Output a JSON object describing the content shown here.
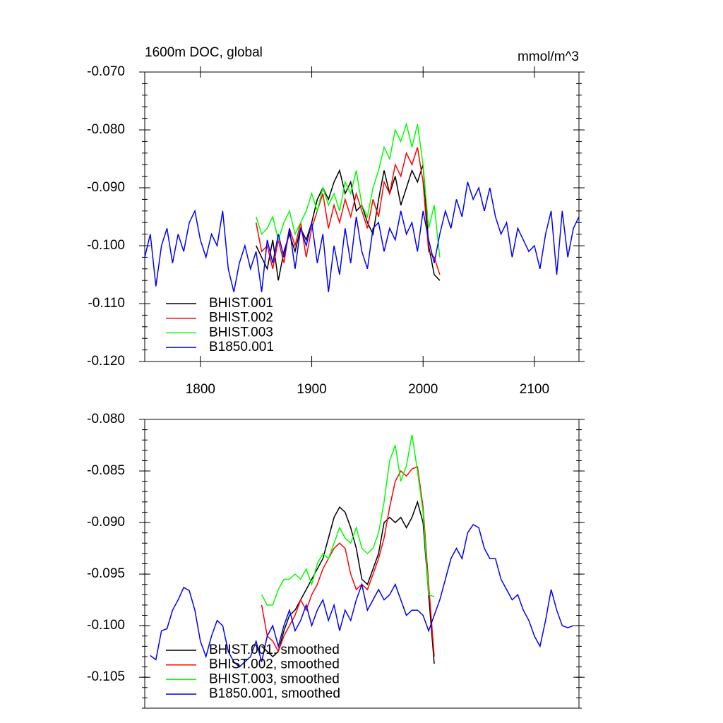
{
  "chart_data": [
    {
      "type": "line",
      "title": "1600m DOC, global",
      "units": "mmol/m^3",
      "xlim": [
        1750,
        2140
      ],
      "xticks": [
        1800,
        1900,
        2000,
        2100
      ],
      "ylim": [
        -0.12,
        -0.07
      ],
      "yticks": [
        {
          "value": -0.12,
          "label": "-0.120"
        },
        {
          "value": -0.11,
          "label": "-0.110"
        },
        {
          "value": -0.1,
          "label": "-0.100"
        },
        {
          "value": -0.09,
          "label": "-0.090"
        },
        {
          "value": -0.08,
          "label": "-0.080"
        },
        {
          "value": -0.07,
          "label": "-0.070"
        }
      ],
      "legend": "lower left",
      "series": [
        {
          "name": "BHIST.001",
          "color": "#000000",
          "x": [
            1850,
            1855,
            1860,
            1865,
            1870,
            1875,
            1880,
            1885,
            1890,
            1895,
            1900,
            1905,
            1910,
            1915,
            1920,
            1925,
            1930,
            1935,
            1940,
            1945,
            1950,
            1955,
            1960,
            1965,
            1970,
            1975,
            1980,
            1985,
            1990,
            1995,
            2000,
            2005,
            2010,
            2015
          ],
          "values": [
            -0.1,
            -0.102,
            -0.104,
            -0.099,
            -0.106,
            -0.101,
            -0.098,
            -0.101,
            -0.097,
            -0.099,
            -0.096,
            -0.092,
            -0.09,
            -0.092,
            -0.089,
            -0.087,
            -0.091,
            -0.089,
            -0.094,
            -0.093,
            -0.096,
            -0.098,
            -0.092,
            -0.087,
            -0.091,
            -0.088,
            -0.093,
            -0.09,
            -0.087,
            -0.089,
            -0.086,
            -0.1,
            -0.105,
            -0.106
          ]
        },
        {
          "name": "BHIST.002",
          "color": "#ff0000",
          "x": [
            1850,
            1855,
            1860,
            1865,
            1870,
            1875,
            1880,
            1885,
            1890,
            1895,
            1900,
            1905,
            1910,
            1915,
            1920,
            1925,
            1930,
            1935,
            1940,
            1945,
            1950,
            1955,
            1960,
            1965,
            1970,
            1975,
            1980,
            1985,
            1990,
            1995,
            2000,
            2005,
            2010,
            2015
          ],
          "values": [
            -0.096,
            -0.101,
            -0.1,
            -0.104,
            -0.099,
            -0.103,
            -0.097,
            -0.1,
            -0.096,
            -0.102,
            -0.097,
            -0.094,
            -0.091,
            -0.097,
            -0.093,
            -0.096,
            -0.092,
            -0.095,
            -0.091,
            -0.094,
            -0.097,
            -0.092,
            -0.095,
            -0.089,
            -0.091,
            -0.086,
            -0.088,
            -0.084,
            -0.086,
            -0.083,
            -0.089,
            -0.101,
            -0.102,
            -0.105
          ]
        },
        {
          "name": "BHIST.003",
          "color": "#00ff00",
          "x": [
            1850,
            1855,
            1860,
            1865,
            1870,
            1875,
            1880,
            1885,
            1890,
            1895,
            1900,
            1905,
            1910,
            1915,
            1920,
            1925,
            1930,
            1935,
            1940,
            1945,
            1950,
            1955,
            1960,
            1965,
            1970,
            1975,
            1980,
            1985,
            1990,
            1995,
            2000,
            2005,
            2010,
            2015
          ],
          "values": [
            -0.095,
            -0.098,
            -0.097,
            -0.095,
            -0.099,
            -0.096,
            -0.094,
            -0.098,
            -0.096,
            -0.094,
            -0.091,
            -0.094,
            -0.09,
            -0.093,
            -0.091,
            -0.094,
            -0.089,
            -0.091,
            -0.087,
            -0.093,
            -0.095,
            -0.09,
            -0.087,
            -0.083,
            -0.085,
            -0.08,
            -0.082,
            -0.079,
            -0.083,
            -0.079,
            -0.086,
            -0.097,
            -0.093,
            -0.102
          ]
        },
        {
          "name": "B1850.001",
          "color": "#0000ff",
          "x": [
            1750,
            1755,
            1760,
            1765,
            1770,
            1775,
            1780,
            1785,
            1790,
            1795,
            1800,
            1805,
            1810,
            1815,
            1820,
            1825,
            1830,
            1835,
            1840,
            1845,
            1850,
            1855,
            1860,
            1865,
            1870,
            1875,
            1880,
            1885,
            1890,
            1895,
            1900,
            1905,
            1910,
            1915,
            1920,
            1925,
            1930,
            1935,
            1940,
            1945,
            1950,
            1955,
            1960,
            1965,
            1970,
            1975,
            1980,
            1985,
            1990,
            1995,
            2000,
            2005,
            2010,
            2015,
            2020,
            2025,
            2030,
            2035,
            2040,
            2045,
            2050,
            2055,
            2060,
            2065,
            2070,
            2075,
            2080,
            2085,
            2090,
            2095,
            2100,
            2105,
            2110,
            2115,
            2120,
            2125,
            2130,
            2135,
            2140
          ],
          "values": [
            -0.102,
            -0.098,
            -0.107,
            -0.1,
            -0.097,
            -0.103,
            -0.098,
            -0.101,
            -0.096,
            -0.094,
            -0.099,
            -0.102,
            -0.098,
            -0.1,
            -0.094,
            -0.104,
            -0.108,
            -0.103,
            -0.1,
            -0.104,
            -0.101,
            -0.108,
            -0.099,
            -0.103,
            -0.098,
            -0.102,
            -0.097,
            -0.104,
            -0.097,
            -0.1,
            -0.096,
            -0.103,
            -0.098,
            -0.108,
            -0.1,
            -0.105,
            -0.097,
            -0.103,
            -0.095,
            -0.101,
            -0.104,
            -0.097,
            -0.096,
            -0.101,
            -0.097,
            -0.099,
            -0.094,
            -0.098,
            -0.096,
            -0.101,
            -0.094,
            -0.099,
            -0.103,
            -0.098,
            -0.094,
            -0.097,
            -0.092,
            -0.095,
            -0.089,
            -0.092,
            -0.09,
            -0.094,
            -0.09,
            -0.095,
            -0.098,
            -0.096,
            -0.102,
            -0.097,
            -0.099,
            -0.101,
            -0.1,
            -0.104,
            -0.098,
            -0.094,
            -0.105,
            -0.094,
            -0.102,
            -0.097,
            -0.095
          ]
        }
      ]
    },
    {
      "type": "line",
      "xlim": [
        1750,
        2140
      ],
      "ylim": [
        -0.108,
        -0.08
      ],
      "yticks": [
        {
          "value": -0.105,
          "label": "-0.105"
        },
        {
          "value": -0.1,
          "label": "-0.100"
        },
        {
          "value": -0.095,
          "label": "-0.095"
        },
        {
          "value": -0.09,
          "label": "-0.090"
        },
        {
          "value": -0.085,
          "label": "-0.085"
        },
        {
          "value": -0.08,
          "label": "-0.080"
        }
      ],
      "legend": "lower left",
      "series": [
        {
          "name": "BHIST.001, smoothed",
          "color": "#000000",
          "x": [
            1855,
            1860,
            1865,
            1870,
            1875,
            1880,
            1885,
            1890,
            1895,
            1900,
            1905,
            1910,
            1915,
            1920,
            1925,
            1930,
            1935,
            1940,
            1945,
            1950,
            1955,
            1960,
            1965,
            1970,
            1975,
            1980,
            1985,
            1990,
            1995,
            2000,
            2005,
            2010
          ],
          "values": [
            -0.102,
            -0.1025,
            -0.103,
            -0.1025,
            -0.1005,
            -0.099,
            -0.0985,
            -0.0975,
            -0.0965,
            -0.0955,
            -0.0945,
            -0.0935,
            -0.0915,
            -0.0895,
            -0.0885,
            -0.089,
            -0.0905,
            -0.0925,
            -0.0955,
            -0.096,
            -0.0945,
            -0.093,
            -0.09,
            -0.0895,
            -0.09,
            -0.0895,
            -0.0905,
            -0.0895,
            -0.088,
            -0.09,
            -0.097,
            -0.1037
          ]
        },
        {
          "name": "BHIST.002, smoothed",
          "color": "#ff0000",
          "x": [
            1855,
            1860,
            1865,
            1870,
            1875,
            1880,
            1885,
            1890,
            1895,
            1900,
            1905,
            1910,
            1915,
            1920,
            1925,
            1930,
            1935,
            1940,
            1945,
            1950,
            1955,
            1960,
            1965,
            1970,
            1975,
            1980,
            1985,
            1990,
            1995,
            2000,
            2005,
            2010
          ],
          "values": [
            -0.098,
            -0.101,
            -0.1015,
            -0.1025,
            -0.101,
            -0.1,
            -0.099,
            -0.0975,
            -0.0985,
            -0.097,
            -0.096,
            -0.0945,
            -0.0935,
            -0.0925,
            -0.092,
            -0.0925,
            -0.095,
            -0.0965,
            -0.096,
            -0.0965,
            -0.095,
            -0.0935,
            -0.0915,
            -0.0885,
            -0.086,
            -0.085,
            -0.0855,
            -0.0848,
            -0.0846,
            -0.0885,
            -0.096,
            -0.103
          ]
        },
        {
          "name": "BHIST.003, smoothed",
          "color": "#00ff00",
          "x": [
            1855,
            1860,
            1865,
            1870,
            1875,
            1880,
            1885,
            1890,
            1895,
            1900,
            1905,
            1910,
            1915,
            1920,
            1925,
            1930,
            1935,
            1940,
            1945,
            1950,
            1955,
            1960,
            1965,
            1970,
            1975,
            1980,
            1985,
            1990,
            1995,
            2000,
            2005,
            2010
          ],
          "values": [
            -0.097,
            -0.098,
            -0.098,
            -0.0965,
            -0.0955,
            -0.0955,
            -0.095,
            -0.0955,
            -0.0945,
            -0.096,
            -0.094,
            -0.093,
            -0.0935,
            -0.092,
            -0.0905,
            -0.0915,
            -0.092,
            -0.0905,
            -0.0925,
            -0.093,
            -0.0925,
            -0.091,
            -0.088,
            -0.084,
            -0.0825,
            -0.086,
            -0.0845,
            -0.0815,
            -0.085,
            -0.089,
            -0.097,
            -0.0972
          ]
        },
        {
          "name": "B1850.001, smoothed",
          "color": "#0000ff",
          "x": [
            1755,
            1760,
            1765,
            1770,
            1775,
            1780,
            1785,
            1790,
            1795,
            1800,
            1805,
            1810,
            1815,
            1820,
            1825,
            1830,
            1835,
            1840,
            1845,
            1850,
            1855,
            1860,
            1865,
            1870,
            1875,
            1880,
            1885,
            1890,
            1895,
            1900,
            1905,
            1910,
            1915,
            1920,
            1925,
            1930,
            1935,
            1940,
            1945,
            1950,
            1955,
            1960,
            1965,
            1970,
            1975,
            1980,
            1985,
            1990,
            1995,
            2000,
            2005,
            2010,
            2015,
            2020,
            2025,
            2030,
            2035,
            2040,
            2045,
            2050,
            2055,
            2060,
            2065,
            2070,
            2075,
            2080,
            2085,
            2090,
            2095,
            2100,
            2105,
            2110,
            2115,
            2120,
            2125,
            2130,
            2135
          ],
          "values": [
            -0.1029,
            -0.1033,
            -0.1005,
            -0.1003,
            -0.0985,
            -0.0975,
            -0.0963,
            -0.0966,
            -0.0985,
            -0.1015,
            -0.103,
            -0.101,
            -0.0995,
            -0.1,
            -0.1025,
            -0.1035,
            -0.104,
            -0.1035,
            -0.103,
            -0.1015,
            -0.1035,
            -0.101,
            -0.1,
            -0.102,
            -0.1,
            -0.0985,
            -0.1005,
            -0.0995,
            -0.098,
            -0.1,
            -0.0985,
            -0.0975,
            -0.0995,
            -0.098,
            -0.1005,
            -0.0985,
            -0.0995,
            -0.0975,
            -0.096,
            -0.0985,
            -0.0975,
            -0.0965,
            -0.0975,
            -0.097,
            -0.096,
            -0.0975,
            -0.099,
            -0.0985,
            -0.0985,
            -0.099,
            -0.1005,
            -0.099,
            -0.0975,
            -0.0955,
            -0.0935,
            -0.0925,
            -0.0935,
            -0.091,
            -0.0902,
            -0.0905,
            -0.0925,
            -0.0935,
            -0.0935,
            -0.0955,
            -0.0965,
            -0.0975,
            -0.097,
            -0.0985,
            -0.0995,
            -0.101,
            -0.102,
            -0.0995,
            -0.0965,
            -0.0985,
            -0.1,
            -0.1002,
            -0.1
          ]
        }
      ]
    }
  ]
}
